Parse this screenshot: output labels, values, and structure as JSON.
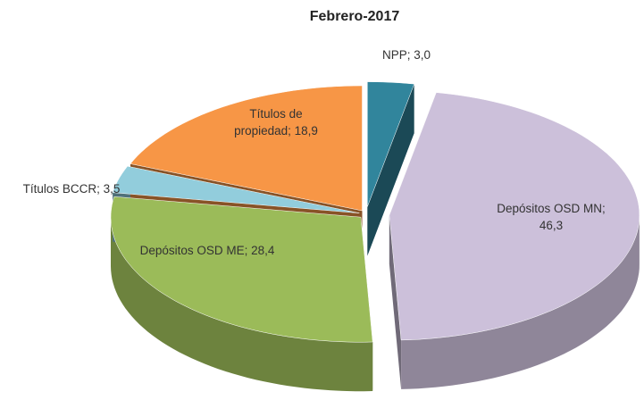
{
  "chart_data": {
    "type": "pie3d",
    "title": "Febrero-2017",
    "categories": [
      "NPP",
      "Depósitos OSD MN",
      "Depósitos OSD ME",
      "Títulos BCCR",
      "Títulos de propiedad"
    ],
    "values": [
      3.0,
      46.3,
      28.4,
      3.5,
      18.9
    ],
    "value_labels": [
      "3,0",
      "46,3",
      "28,4",
      "3,5",
      "18,9"
    ],
    "label_separator": "; ",
    "colors": [
      "#31859c",
      "#ccc0da",
      "#9bbb59",
      "#92cddc",
      "#f79646"
    ]
  }
}
